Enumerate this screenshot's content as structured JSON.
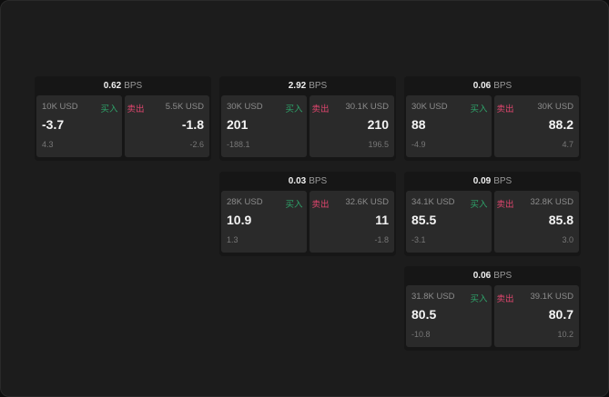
{
  "labels": {
    "bps": "BPS",
    "buy": "买入",
    "sell": "卖出"
  },
  "colors": {
    "buy": "#2ea36a",
    "sell": "#e0466e"
  },
  "widgets": [
    {
      "bps": "0.62",
      "buy": {
        "size": "10K USD",
        "price": "-3.7",
        "delta": "4.3"
      },
      "sell": {
        "size": "5.5K USD",
        "price": "-1.8",
        "delta": "-2.6"
      }
    },
    {
      "bps": "2.92",
      "buy": {
        "size": "30K USD",
        "price": "201",
        "delta": "-188.1"
      },
      "sell": {
        "size": "30.1K USD",
        "price": "210",
        "delta": "196.5"
      }
    },
    {
      "bps": "0.06",
      "buy": {
        "size": "30K USD",
        "price": "88",
        "delta": "-4.9"
      },
      "sell": {
        "size": "30K USD",
        "price": "88.2",
        "delta": "4.7"
      }
    },
    {
      "bps": "0.03",
      "buy": {
        "size": "28K USD",
        "price": "10.9",
        "delta": "1.3"
      },
      "sell": {
        "size": "32.6K USD",
        "price": "11",
        "delta": "-1.8"
      }
    },
    {
      "bps": "0.09",
      "buy": {
        "size": "34.1K USD",
        "price": "85.5",
        "delta": "-3.1"
      },
      "sell": {
        "size": "32.8K USD",
        "price": "85.8",
        "delta": "3.0"
      }
    },
    {
      "bps": "0.06",
      "buy": {
        "size": "31.8K USD",
        "price": "80.5",
        "delta": "-10.8"
      },
      "sell": {
        "size": "39.1K USD",
        "price": "80.7",
        "delta": "10.2"
      }
    }
  ]
}
